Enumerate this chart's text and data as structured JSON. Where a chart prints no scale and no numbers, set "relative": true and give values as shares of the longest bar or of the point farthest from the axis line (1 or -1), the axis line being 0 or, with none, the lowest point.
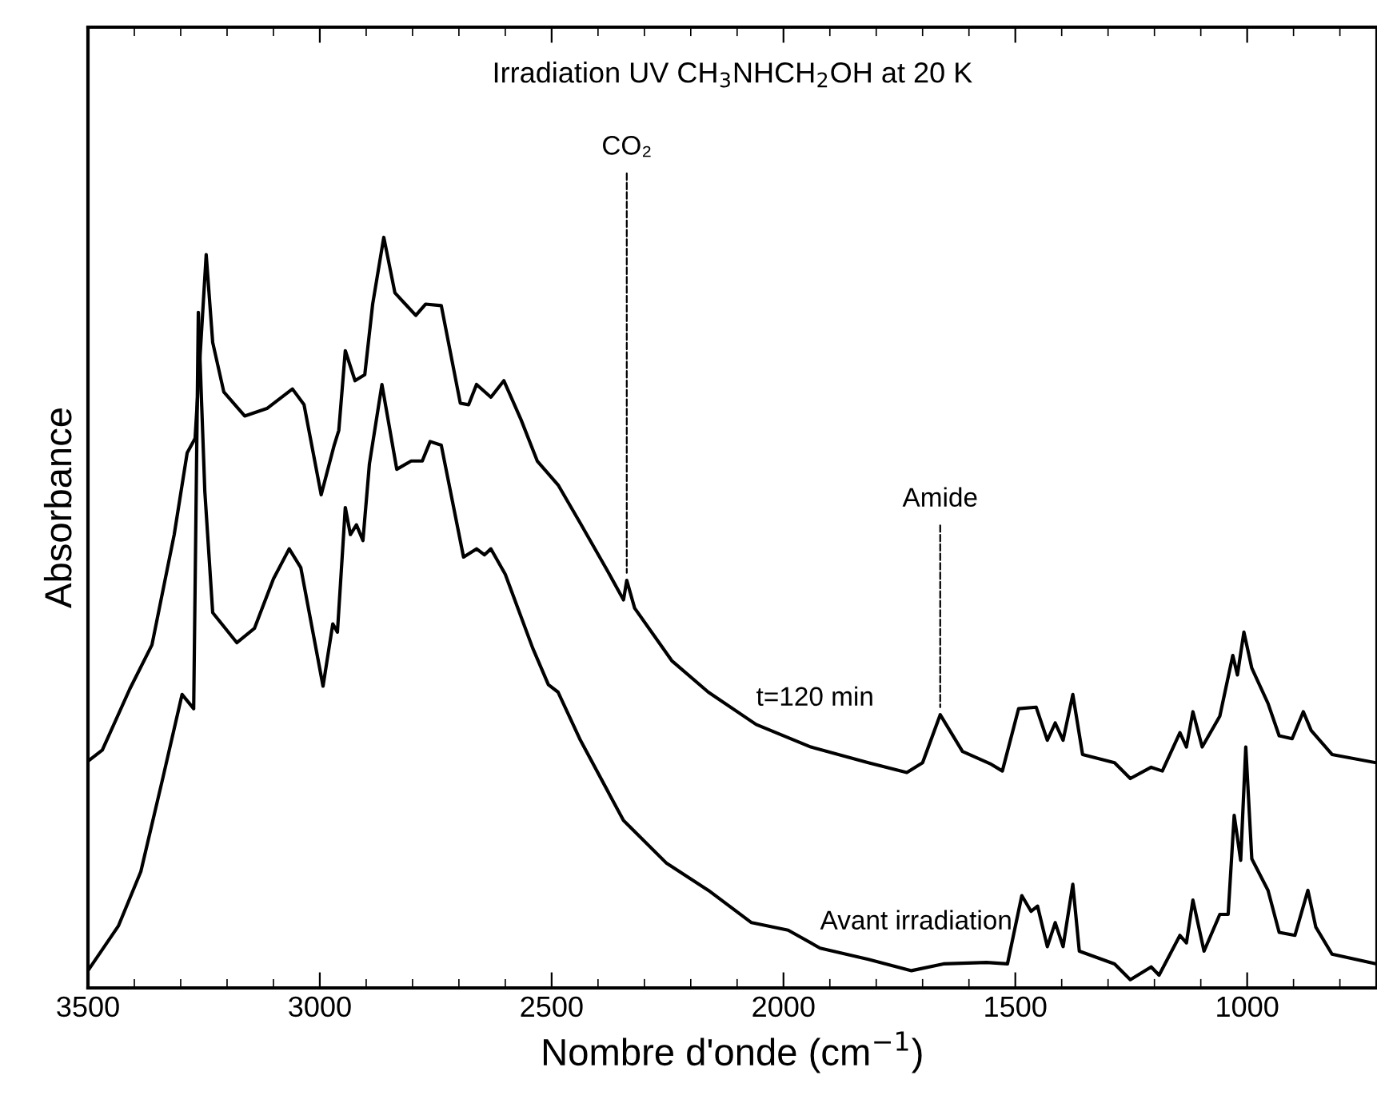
{
  "chart_data": {
    "type": "line",
    "relative": true,
    "title": "Irradiation UV CH$_{3}$NHCH$_{2}$OH at 20 K",
    "xlabel": "Nombre d'onde (cm$^{−1}$)",
    "ylabel": "Absorbance",
    "xlim": [
      3500,
      720
    ],
    "xticks": [
      3500,
      3000,
      2500,
      2000,
      1500,
      1000
    ],
    "grid": false,
    "legend": false,
    "marker": "none",
    "line_style": "solid",
    "annotations": [
      {
        "text": "CO₂",
        "x": 2338,
        "y": 0.543
      },
      {
        "text": "Amide",
        "x": 1662,
        "y": 0.364
      }
    ],
    "series": [
      {
        "name": "t=120 min",
        "color": "#000000",
        "x": [
          3500,
          3469,
          3410,
          3362,
          3314,
          3286,
          3269,
          3245,
          3231,
          3207,
          3162,
          3114,
          3059,
          3034,
          2997,
          2969,
          2959,
          2945,
          2924,
          2903,
          2886,
          2862,
          2838,
          2793,
          2772,
          2738,
          2697,
          2679,
          2662,
          2631,
          2603,
          2566,
          2531,
          2486,
          2438,
          2379,
          2345,
          2338,
          2321,
          2241,
          2162,
          2059,
          1941,
          1817,
          1734,
          1700,
          1662,
          1614,
          1552,
          1528,
          1493,
          1455,
          1431,
          1414,
          1397,
          1376,
          1355,
          1286,
          1252,
          1207,
          1183,
          1145,
          1131,
          1117,
          1097,
          1059,
          1031,
          1021,
          1007,
          990,
          955,
          931,
          903,
          879,
          862,
          817,
          722
        ],
        "values": [
          0.302,
          0.317,
          0.398,
          0.457,
          0.604,
          0.713,
          0.732,
          0.977,
          0.86,
          0.794,
          0.762,
          0.772,
          0.798,
          0.777,
          0.657,
          0.723,
          0.743,
          0.849,
          0.809,
          0.817,
          0.911,
          1.0,
          0.926,
          0.896,
          0.911,
          0.909,
          0.779,
          0.777,
          0.804,
          0.787,
          0.809,
          0.757,
          0.702,
          0.67,
          0.619,
          0.555,
          0.517,
          0.543,
          0.506,
          0.436,
          0.394,
          0.351,
          0.321,
          0.3,
          0.287,
          0.3,
          0.364,
          0.315,
          0.298,
          0.289,
          0.372,
          0.374,
          0.33,
          0.353,
          0.33,
          0.391,
          0.311,
          0.3,
          0.279,
          0.294,
          0.289,
          0.34,
          0.321,
          0.368,
          0.321,
          0.362,
          0.443,
          0.417,
          0.474,
          0.426,
          0.379,
          0.336,
          0.332,
          0.368,
          0.343,
          0.311,
          0.3
        ]
      },
      {
        "name": "Avant irradiation",
        "color": "#000000",
        "x": [
          3500,
          3434,
          3386,
          3338,
          3297,
          3272,
          3262,
          3248,
          3231,
          3179,
          3141,
          3100,
          3066,
          3041,
          2993,
          2972,
          2962,
          2945,
          2934,
          2921,
          2907,
          2893,
          2866,
          2834,
          2803,
          2779,
          2762,
          2738,
          2690,
          2662,
          2645,
          2631,
          2600,
          2541,
          2507,
          2486,
          2438,
          2345,
          2252,
          2162,
          2069,
          1990,
          1921,
          1817,
          1724,
          1655,
          1562,
          1517,
          1486,
          1466,
          1452,
          1431,
          1414,
          1397,
          1376,
          1362,
          1286,
          1252,
          1207,
          1190,
          1145,
          1131,
          1117,
          1093,
          1059,
          1041,
          1028,
          1014,
          1003,
          990,
          955,
          931,
          897,
          869,
          852,
          817,
          722
        ],
        "values": [
          0.023,
          0.083,
          0.155,
          0.281,
          0.391,
          0.372,
          0.9,
          0.662,
          0.5,
          0.46,
          0.479,
          0.545,
          0.585,
          0.56,
          0.402,
          0.485,
          0.474,
          0.64,
          0.604,
          0.617,
          0.596,
          0.698,
          0.804,
          0.691,
          0.702,
          0.702,
          0.728,
          0.723,
          0.574,
          0.585,
          0.577,
          0.585,
          0.551,
          0.453,
          0.404,
          0.394,
          0.33,
          0.223,
          0.166,
          0.13,
          0.087,
          0.077,
          0.053,
          0.038,
          0.023,
          0.032,
          0.034,
          0.032,
          0.123,
          0.102,
          0.109,
          0.055,
          0.087,
          0.055,
          0.138,
          0.049,
          0.032,
          0.011,
          0.028,
          0.017,
          0.07,
          0.06,
          0.117,
          0.049,
          0.098,
          0.098,
          0.23,
          0.17,
          0.321,
          0.172,
          0.13,
          0.074,
          0.07,
          0.13,
          0.081,
          0.045,
          0.032
        ]
      }
    ]
  }
}
